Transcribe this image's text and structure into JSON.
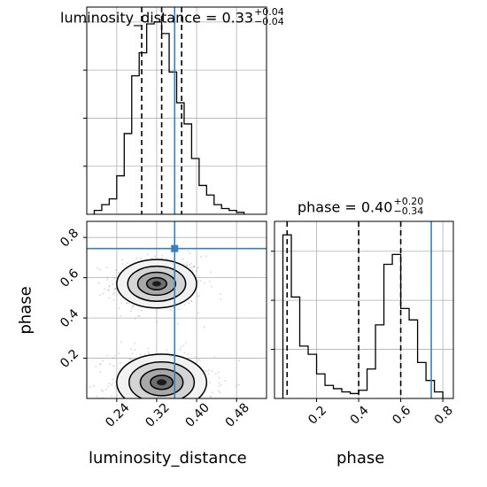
{
  "colors": {
    "truth": "#3a7fb8",
    "hist": "#000000",
    "grid": "#b0b0b0",
    "points": "#8a8a8a"
  },
  "titles": {
    "luminosity_distance": {
      "lhs": "luminosity_distance = 0.33",
      "plus": "+0.04",
      "minus": "−0.04"
    },
    "phase": {
      "lhs": "phase = 0.40",
      "plus": "+0.20",
      "minus": "−0.34"
    }
  },
  "labels": {
    "x_lumdist": "luminosity_distance",
    "x_phase": "phase",
    "y_phase": "phase"
  },
  "chart_data": [
    {
      "type": "histogram",
      "parameter": "luminosity_distance",
      "xlim": [
        0.18,
        0.54
      ],
      "bin_edges": [
        0.195,
        0.21,
        0.225,
        0.24,
        0.255,
        0.27,
        0.285,
        0.3,
        0.315,
        0.33,
        0.345,
        0.36,
        0.375,
        0.39,
        0.405,
        0.42,
        0.435,
        0.45,
        0.465,
        0.48,
        0.495
      ],
      "counts_relative": [
        0.02,
        0.05,
        0.08,
        0.2,
        0.42,
        0.72,
        0.84,
        0.99,
        1.0,
        0.94,
        0.74,
        0.58,
        0.47,
        0.29,
        0.15,
        0.1,
        0.05,
        0.03,
        0.02,
        0.01
      ],
      "quantiles": [
        0.29,
        0.33,
        0.37
      ],
      "truth": 0.356,
      "xticks": [
        "0.24",
        "0.32",
        "0.40",
        "0.48"
      ]
    },
    {
      "type": "scatter_contour",
      "x": "luminosity_distance",
      "y": "phase",
      "xlim": [
        0.18,
        0.54
      ],
      "ylim": [
        0.0,
        0.88
      ],
      "modes": [
        {
          "center": [
            0.32,
            0.57
          ],
          "sigma": [
            0.04,
            0.06
          ]
        },
        {
          "center": [
            0.33,
            0.08
          ],
          "sigma": [
            0.045,
            0.07
          ]
        }
      ],
      "truth": [
        0.356,
        0.745
      ],
      "xticks": [
        "0.24",
        "0.32",
        "0.40",
        "0.48"
      ],
      "yticks": [
        "0.2",
        "0.4",
        "0.6",
        "0.8"
      ]
    },
    {
      "type": "histogram",
      "parameter": "phase",
      "xlim": [
        0.0,
        0.85
      ],
      "bin_edges": [
        0.04,
        0.08,
        0.12,
        0.16,
        0.2,
        0.24,
        0.28,
        0.32,
        0.36,
        0.4,
        0.44,
        0.48,
        0.52,
        0.56,
        0.6,
        0.64,
        0.68,
        0.72,
        0.76,
        0.8
      ],
      "counts_relative": [
        1.0,
        0.62,
        0.32,
        0.27,
        0.15,
        0.08,
        0.06,
        0.04,
        0.03,
        0.05,
        0.18,
        0.45,
        0.82,
        0.88,
        0.55,
        0.48,
        0.22,
        0.11,
        0.04
      ],
      "quantiles": [
        0.06,
        0.4,
        0.6
      ],
      "truth": 0.745,
      "xticks": [
        "0.2",
        "0.4",
        "0.6",
        "0.8"
      ]
    }
  ]
}
